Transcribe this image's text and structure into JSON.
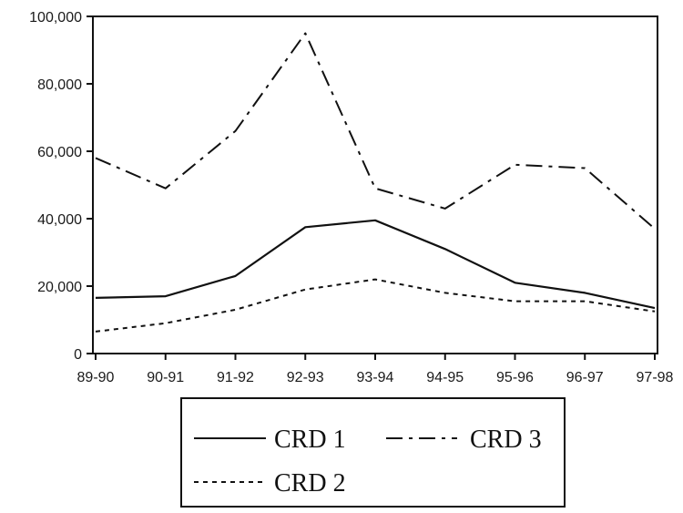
{
  "chart_data": {
    "type": "line",
    "title": "",
    "xlabel": "",
    "ylabel": "",
    "categories": [
      "89-90",
      "90-91",
      "91-92",
      "92-93",
      "93-94",
      "94-95",
      "95-96",
      "96-97",
      "97-98"
    ],
    "ylim": [
      0,
      100000
    ],
    "yticks": [
      0,
      20000,
      40000,
      60000,
      80000,
      100000
    ],
    "ytick_labels": [
      "0",
      "20,000",
      "40,000",
      "60,000",
      "80,000",
      "100,000"
    ],
    "grid": false,
    "legend_position": "bottom",
    "series": [
      {
        "name": "CRD 1",
        "line_style": "solid",
        "color": "#111111",
        "values": [
          16500,
          17000,
          23000,
          37500,
          39500,
          31000,
          21000,
          18000,
          13500
        ]
      },
      {
        "name": "CRD 2",
        "line_style": "dotted",
        "color": "#111111",
        "values": [
          6500,
          9000,
          13000,
          19000,
          22000,
          18000,
          15500,
          15500,
          12500
        ]
      },
      {
        "name": "CRD 3",
        "line_style": "dash-dot",
        "color": "#111111",
        "values": [
          58000,
          49000,
          66000,
          95000,
          49000,
          43000,
          56000,
          55000,
          37000
        ]
      }
    ]
  }
}
